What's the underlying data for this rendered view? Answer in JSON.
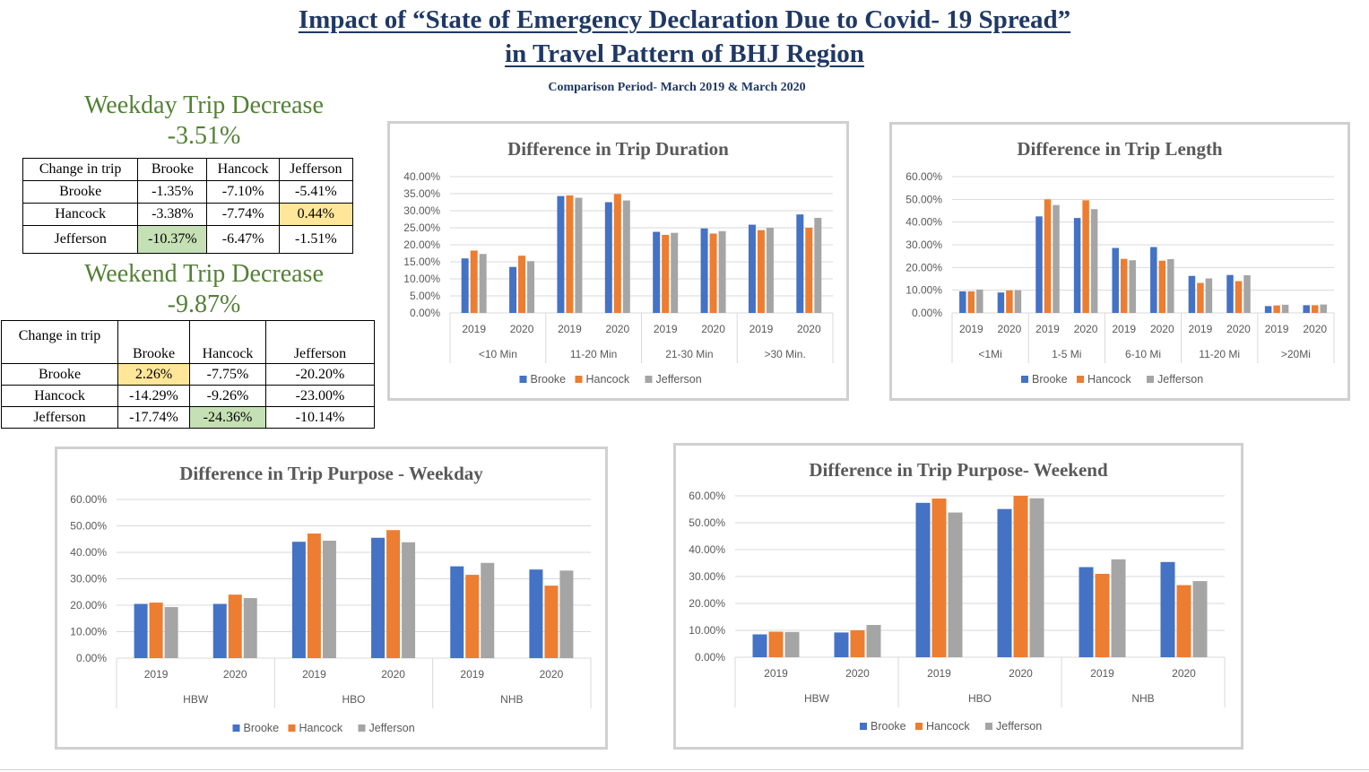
{
  "header": {
    "title_line1": "Impact of “State of Emergency Declaration Due to Covid- 19 Spread”",
    "title_line2": "in Travel Pattern of  BHJ Region",
    "subtitle": "Comparison Period- March 2019 & March 2020"
  },
  "weekday": {
    "heading": "Weekday Trip Decrease",
    "value": "-3.51%",
    "table": {
      "corner": "Change in trip",
      "columns": [
        "Brooke",
        "Hancock",
        "Jefferson"
      ],
      "rows": [
        {
          "label": "Brooke",
          "cells": [
            "-1.35%",
            "-7.10%",
            "-5.41%"
          ]
        },
        {
          "label": "Hancock",
          "cells": [
            "-3.38%",
            "-7.74%",
            "0.44%"
          ]
        },
        {
          "label": "Jefferson",
          "cells": [
            "-10.37%",
            "-6.47%",
            "-1.51%"
          ]
        }
      ]
    }
  },
  "weekend": {
    "heading": "Weekend Trip Decrease",
    "value": "-9.87%",
    "table": {
      "corner": "Change in trip",
      "columns": [
        "Brooke",
        "Hancock",
        "Jefferson"
      ],
      "rows": [
        {
          "label": "Brooke",
          "cells": [
            "2.26%",
            "-7.75%",
            "-20.20%"
          ]
        },
        {
          "label": "Hancock",
          "cells": [
            "-14.29%",
            "-9.26%",
            "-23.00%"
          ]
        },
        {
          "label": "Jefferson",
          "cells": [
            "-17.74%",
            "-24.36%",
            "-10.14%"
          ]
        }
      ]
    }
  },
  "colors": {
    "Brooke": "#4472c4",
    "Hancock": "#ed7d31",
    "Jefferson": "#a5a5a5",
    "highlight_yellow": "#ffe699",
    "highlight_green": "#c5e0b4",
    "title_blue": "#1f3864",
    "heading_green": "#538135"
  },
  "chart_data": [
    {
      "type": "bar",
      "title": "Difference in Trip Duration",
      "groups": [
        "<10 Min",
        "11-20 Min",
        "21-30 Min",
        ">30 Min."
      ],
      "categories": [
        "2019",
        "2020",
        "2019",
        "2020",
        "2019",
        "2020",
        "2019",
        "2020"
      ],
      "series": [
        {
          "name": "Brooke",
          "values": [
            0.16,
            0.135,
            0.343,
            0.325,
            0.238,
            0.248,
            0.259,
            0.289
          ]
        },
        {
          "name": "Hancock",
          "values": [
            0.183,
            0.168,
            0.345,
            0.349,
            0.229,
            0.233,
            0.243,
            0.25
          ]
        },
        {
          "name": "Jefferson",
          "values": [
            0.173,
            0.152,
            0.338,
            0.33,
            0.235,
            0.24,
            0.25,
            0.279
          ]
        }
      ],
      "yticks": [
        "0.00%",
        "5.00%",
        "10.00%",
        "15.00%",
        "20.00%",
        "25.00%",
        "30.00%",
        "35.00%",
        "40.00%"
      ],
      "ylim": [
        0,
        0.4
      ],
      "legend": "bottom"
    },
    {
      "type": "bar",
      "title": "Difference in Trip Length",
      "groups": [
        "<1Mi",
        "1-5 Mi",
        "6-10 Mi",
        "11-20 Mi",
        ">20Mi"
      ],
      "categories": [
        "2019",
        "2020",
        "2019",
        "2020",
        "2019",
        "2020",
        "2019",
        "2020",
        "2019",
        "2020"
      ],
      "series": [
        {
          "name": "Brooke",
          "values": [
            0.095,
            0.09,
            0.425,
            0.418,
            0.286,
            0.29,
            0.163,
            0.167,
            0.03,
            0.034
          ]
        },
        {
          "name": "Hancock",
          "values": [
            0.095,
            0.099,
            0.5,
            0.496,
            0.238,
            0.23,
            0.132,
            0.14,
            0.033,
            0.034
          ]
        },
        {
          "name": "Jefferson",
          "values": [
            0.103,
            0.1,
            0.475,
            0.457,
            0.232,
            0.237,
            0.152,
            0.166,
            0.036,
            0.037
          ]
        }
      ],
      "yticks": [
        "0.00%",
        "10.00%",
        "20.00%",
        "30.00%",
        "40.00%",
        "50.00%",
        "60.00%"
      ],
      "ylim": [
        0,
        0.6
      ],
      "legend": "bottom"
    },
    {
      "type": "bar",
      "title": "Difference in Trip Purpose - Weekday",
      "groups": [
        "HBW",
        "HBO",
        "NHB"
      ],
      "categories": [
        "2019",
        "2020",
        "2019",
        "2020",
        "2019",
        "2020"
      ],
      "series": [
        {
          "name": "Brooke",
          "values": [
            0.205,
            0.205,
            0.44,
            0.455,
            0.347,
            0.335
          ]
        },
        {
          "name": "Hancock",
          "values": [
            0.21,
            0.24,
            0.471,
            0.484,
            0.315,
            0.274
          ]
        },
        {
          "name": "Jefferson",
          "values": [
            0.193,
            0.227,
            0.444,
            0.438,
            0.36,
            0.331
          ]
        }
      ],
      "yticks": [
        "0.00%",
        "10.00%",
        "20.00%",
        "30.00%",
        "40.00%",
        "50.00%",
        "60.00%"
      ],
      "ylim": [
        0,
        0.6
      ],
      "legend": "bottom"
    },
    {
      "type": "bar",
      "title": "Difference in Trip Purpose- Weekend",
      "groups": [
        "HBW",
        "HBO",
        "NHB"
      ],
      "categories": [
        "2019",
        "2020",
        "2019",
        "2020",
        "2019",
        "2020"
      ],
      "series": [
        {
          "name": "Brooke",
          "values": [
            0.085,
            0.092,
            0.574,
            0.551,
            0.335,
            0.354
          ]
        },
        {
          "name": "Hancock",
          "values": [
            0.095,
            0.1,
            0.59,
            0.6,
            0.31,
            0.268
          ]
        },
        {
          "name": "Jefferson",
          "values": [
            0.094,
            0.12,
            0.538,
            0.591,
            0.364,
            0.283
          ]
        }
      ],
      "yticks": [
        "0.00%",
        "10.00%",
        "20.00%",
        "30.00%",
        "40.00%",
        "50.00%",
        "60.00%"
      ],
      "ylim": [
        0,
        0.6
      ],
      "legend": "bottom"
    }
  ]
}
